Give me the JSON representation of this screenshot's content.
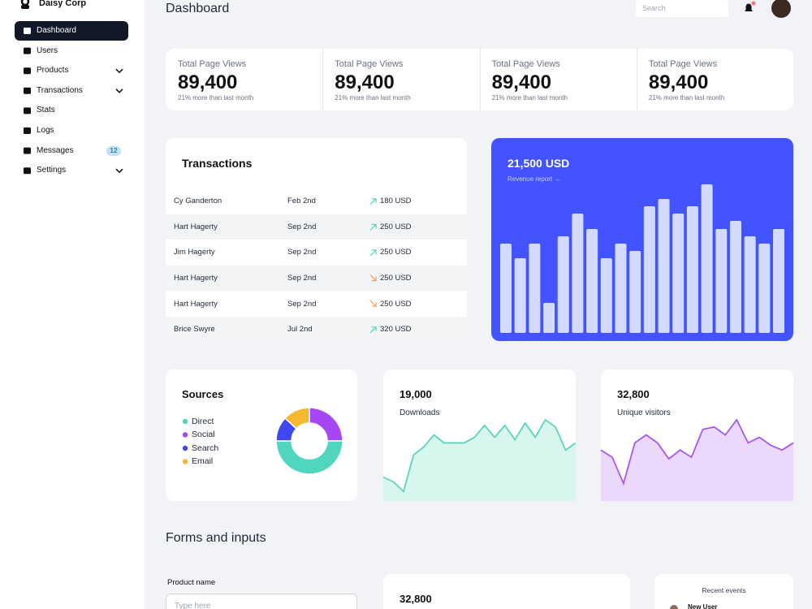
{
  "brand": "Daisy Corp",
  "sidebar": [
    {
      "label": "Dashboard",
      "active": true
    },
    {
      "label": "Users"
    },
    {
      "label": "Products",
      "expandable": true
    },
    {
      "label": "Transactions",
      "expandable": true
    },
    {
      "label": "Stats"
    },
    {
      "label": "Logs"
    },
    {
      "label": "Messages",
      "badge": "12"
    },
    {
      "label": "Settings",
      "expandable": true
    }
  ],
  "header": {
    "title": "Dashboard",
    "search_placeholder": "Search"
  },
  "stats": [
    {
      "label": "Total Page Views",
      "value": "89,400",
      "note": "21% more than last month"
    },
    {
      "label": "Total Page Views",
      "value": "89,400",
      "note": "21% more than last month"
    },
    {
      "label": "Total Page Views",
      "value": "89,400",
      "note": "21% more than last month"
    },
    {
      "label": "Total Page Views",
      "value": "89,400",
      "note": "21% more than last month"
    }
  ],
  "transactions": {
    "title": "Transactions",
    "rows": [
      {
        "name": "Cy Ganderton",
        "date": "Feb 2nd",
        "amount": "180 USD",
        "trend": "up"
      },
      {
        "name": "Hart Hagerty",
        "date": "Sep 2nd",
        "amount": "250 USD",
        "trend": "up"
      },
      {
        "name": "Jim Hagerty",
        "date": "Sep 2nd",
        "amount": "250 USD",
        "trend": "up"
      },
      {
        "name": "Hart Hagerty",
        "date": "Sep 2nd",
        "amount": "250 USD",
        "trend": "down"
      },
      {
        "name": "Hart Hagerty",
        "date": "Sep 2nd",
        "amount": "250 USD",
        "trend": "down"
      },
      {
        "name": "Brice Swyre",
        "date": "Jul 2nd",
        "amount": "320 USD",
        "trend": "up"
      }
    ]
  },
  "revenue": {
    "title": "21,500 USD",
    "link": "Revenue report →",
    "bar_color": "#d2dbff",
    "values": [
      110,
      92,
      110,
      37,
      119,
      147,
      128,
      92,
      110,
      101,
      156,
      165,
      147,
      156,
      183,
      128,
      138,
      119,
      110,
      128
    ]
  },
  "sources": {
    "title": "Sources",
    "series": [
      {
        "name": "Direct",
        "color": "#4fd6bd",
        "value": 50
      },
      {
        "name": "Social",
        "color": "#a646f5",
        "value": 25
      },
      {
        "name": "Search",
        "color": "#4047f0",
        "value": 12
      },
      {
        "name": "Email",
        "color": "#f5b82e",
        "value": 13
      }
    ]
  },
  "downloads": {
    "value": "19,000",
    "label": "Downloads",
    "line_color": "#5ad4be",
    "fill_color": "#d9f6ee",
    "values": [
      30,
      24,
      12,
      58,
      68,
      83,
      73,
      73,
      73,
      80,
      95,
      80,
      95,
      77,
      98,
      80,
      102,
      93,
      64,
      73
    ]
  },
  "visitors": {
    "value": "32,800",
    "label": "Unique visitors",
    "line_color": "#a855f7",
    "fill_color": "#ead9fb",
    "values": [
      64,
      55,
      22,
      73,
      83,
      73,
      53,
      64,
      55,
      90,
      93,
      83,
      102,
      73,
      80,
      70,
      64,
      73
    ]
  },
  "forms": {
    "title": "Forms and inputs",
    "product_label": "Product name",
    "product_placeholder": "Type here"
  },
  "bottom_stat": {
    "value": "32,800"
  },
  "recent_events": {
    "title": "Recent events",
    "items": [
      "New User"
    ]
  }
}
